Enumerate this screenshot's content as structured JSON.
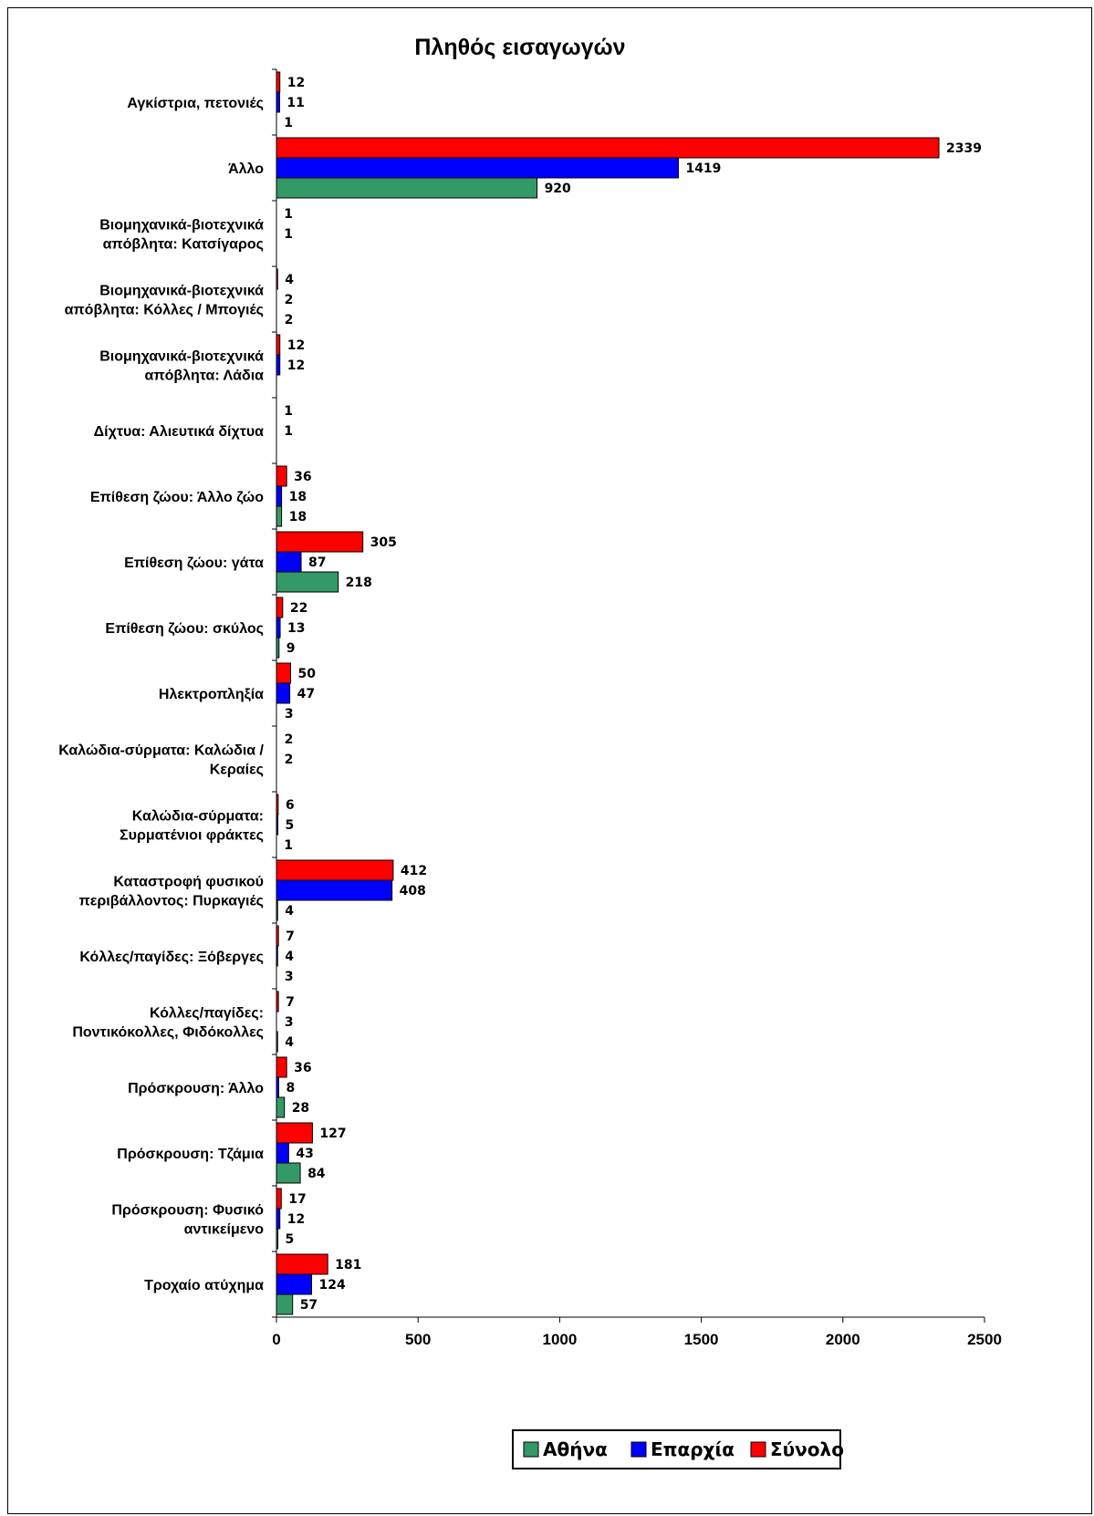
{
  "chart_data": {
    "type": "bar",
    "orientation": "horizontal",
    "title": "Πληθός εισαγωγών",
    "categories": [
      [
        "Αγκίστρια, πετονιές"
      ],
      [
        "Άλλο"
      ],
      [
        "Βιομηχανικά-βιοτεχνικά",
        "απόβλητα: Κατσίγαρος"
      ],
      [
        "Βιομηχανικά-βιοτεχνικά",
        "απόβλητα: Κόλλες / Μπογιές"
      ],
      [
        "Βιομηχανικά-βιοτεχνικά",
        "απόβλητα: Λάδια"
      ],
      [
        "Δίχτυα: Αλιευτικά δίχτυα"
      ],
      [
        "Επίθεση ζώου: Άλλο ζώο"
      ],
      [
        "Επίθεση ζώου: γάτα"
      ],
      [
        "Επίθεση ζώου: σκύλος"
      ],
      [
        "Ηλεκτροπληξία"
      ],
      [
        "Καλώδια-σύρματα: Καλώδια /",
        "Κεραίες"
      ],
      [
        "Καλώδια-σύρματα:",
        "Συρματένιοι φράκτες"
      ],
      [
        "Καταστροφή φυσικού",
        "περιβάλλοντος: Πυρκαγιές"
      ],
      [
        "Κόλλες/παγίδες: Ξόβεργες"
      ],
      [
        "Κόλλες/παγίδες:",
        "Ποντικόκολλες, Φιδόκολλες"
      ],
      [
        "Πρόσκρουση: Άλλο"
      ],
      [
        "Πρόσκρουση: Τζάμια"
      ],
      [
        "Πρόσκρουση: Φυσικό",
        "αντικείμενο"
      ],
      [
        "Τροχαίο ατύχημα"
      ]
    ],
    "series": [
      {
        "name": "Σύνολο",
        "color": "#ff0000",
        "values": [
          12,
          2339,
          1,
          4,
          12,
          1,
          36,
          305,
          22,
          50,
          2,
          6,
          412,
          7,
          7,
          36,
          127,
          17,
          181
        ]
      },
      {
        "name": "Επαρχία",
        "color": "#0000ff",
        "values": [
          11,
          1419,
          1,
          2,
          12,
          1,
          18,
          87,
          13,
          47,
          2,
          5,
          408,
          4,
          3,
          8,
          43,
          12,
          124
        ]
      },
      {
        "name": "Αθήνα",
        "color": "#339966",
        "values": [
          1,
          920,
          null,
          2,
          null,
          null,
          18,
          218,
          9,
          3,
          null,
          1,
          4,
          3,
          4,
          28,
          84,
          5,
          57
        ]
      }
    ],
    "legend_order": [
      "Αθήνα",
      "Επαρχία",
      "Σύνολο"
    ],
    "xlim": [
      0,
      2500
    ],
    "xticks": [
      "0",
      "500",
      "1000",
      "1500",
      "2000",
      "2500"
    ],
    "grid": false,
    "legend_position": "bottom"
  }
}
